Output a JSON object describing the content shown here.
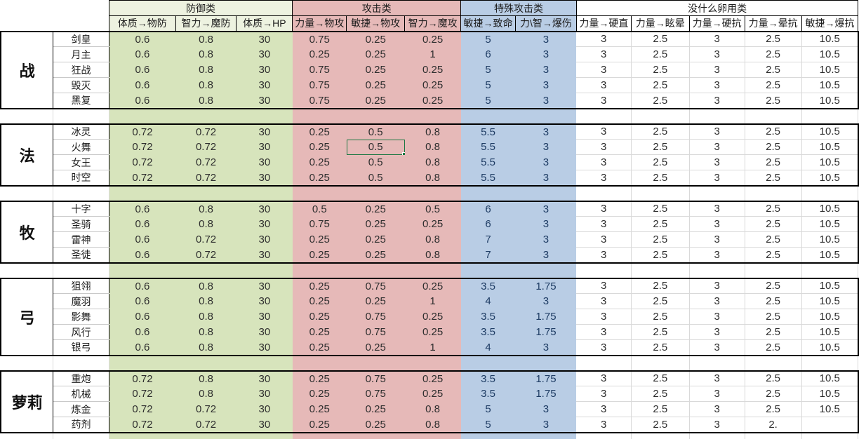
{
  "table": {
    "column_groups": [
      {
        "label": "防御类",
        "span": 3,
        "fill": "#d7e4bc"
      },
      {
        "label": "攻击类",
        "span": 3,
        "fill": "#e6b9b8"
      },
      {
        "label": "特殊攻击类",
        "span": 2,
        "fill": "#b9cde5"
      },
      {
        "label": "没什么卵用类",
        "span": 5,
        "fill": "#ffffff"
      }
    ],
    "columns": [
      "体质→物防",
      "智力→魔防",
      "体质→HP",
      "力量→物攻",
      "敏捷→物攻",
      "智力→魔攻",
      "敏捷→致命",
      "力\\智→爆伤",
      "力量→硬直",
      "力量→眩晕",
      "力量→硬抗",
      "力量→晕抗",
      "敏捷→爆抗"
    ],
    "groups": [
      {
        "label": "战",
        "rows": [
          {
            "name": "剑皇",
            "values": [
              "0.6",
              "0.8",
              "30",
              "0.75",
              "0.25",
              "0.25",
              "5",
              "3",
              "3",
              "2.5",
              "3",
              "2.5",
              "10.5"
            ]
          },
          {
            "name": "月主",
            "values": [
              "0.6",
              "0.8",
              "30",
              "0.25",
              "0.25",
              "1",
              "6",
              "3",
              "3",
              "2.5",
              "3",
              "2.5",
              "10.5"
            ]
          },
          {
            "name": "狂战",
            "values": [
              "0.6",
              "0.8",
              "30",
              "0.75",
              "0.25",
              "0.25",
              "5",
              "3",
              "3",
              "2.5",
              "3",
              "2.5",
              "10.5"
            ]
          },
          {
            "name": "毁灭",
            "values": [
              "0.6",
              "0.8",
              "30",
              "0.75",
              "0.25",
              "0.25",
              "5",
              "3",
              "3",
              "2.5",
              "3",
              "2.5",
              "10.5"
            ]
          },
          {
            "name": "黑复",
            "values": [
              "0.6",
              "0.8",
              "30",
              "0.75",
              "0.25",
              "0.25",
              "5",
              "3",
              "3",
              "2.5",
              "3",
              "2.5",
              "10.5"
            ]
          }
        ]
      },
      {
        "label": "法",
        "rows": [
          {
            "name": "冰灵",
            "values": [
              "0.72",
              "0.72",
              "30",
              "0.25",
              "0.5",
              "0.8",
              "5.5",
              "3",
              "3",
              "2.5",
              "3",
              "2.5",
              "10.5"
            ]
          },
          {
            "name": "火舞",
            "values": [
              "0.72",
              "0.72",
              "30",
              "0.25",
              "0.5",
              "0.8",
              "5.5",
              "3",
              "3",
              "2.5",
              "3",
              "2.5",
              "10.5"
            ]
          },
          {
            "name": "女王",
            "values": [
              "0.72",
              "0.72",
              "30",
              "0.25",
              "0.5",
              "0.8",
              "5.5",
              "3",
              "3",
              "2.5",
              "3",
              "2.5",
              "10.5"
            ]
          },
          {
            "name": "时空",
            "values": [
              "0.72",
              "0.72",
              "30",
              "0.25",
              "0.5",
              "0.8",
              "5.5",
              "3",
              "3",
              "2.5",
              "3",
              "2.5",
              "10.5"
            ]
          }
        ]
      },
      {
        "label": "牧",
        "rows": [
          {
            "name": "十字",
            "values": [
              "0.6",
              "0.8",
              "30",
              "0.5",
              "0.25",
              "0.5",
              "6",
              "3",
              "3",
              "2.5",
              "3",
              "2.5",
              "10.5"
            ]
          },
          {
            "name": "圣骑",
            "values": [
              "0.6",
              "0.8",
              "30",
              "0.75",
              "0.25",
              "0.25",
              "6",
              "3",
              "3",
              "2.5",
              "3",
              "2.5",
              "10.5"
            ]
          },
          {
            "name": "雷神",
            "values": [
              "0.6",
              "0.72",
              "30",
              "0.25",
              "0.25",
              "0.8",
              "7",
              "3",
              "3",
              "2.5",
              "3",
              "2.5",
              "10.5"
            ]
          },
          {
            "name": "圣徒",
            "values": [
              "0.6",
              "0.72",
              "30",
              "0.25",
              "0.25",
              "0.8",
              "7",
              "3",
              "3",
              "2.5",
              "3",
              "2.5",
              "10.5"
            ]
          }
        ]
      },
      {
        "label": "弓",
        "rows": [
          {
            "name": "狙翎",
            "values": [
              "0.6",
              "0.8",
              "30",
              "0.25",
              "0.75",
              "0.25",
              "3.5",
              "1.75",
              "3",
              "2.5",
              "3",
              "2.5",
              "10.5"
            ]
          },
          {
            "name": "魔羽",
            "values": [
              "0.6",
              "0.8",
              "30",
              "0.25",
              "0.25",
              "1",
              "4",
              "3",
              "3",
              "2.5",
              "3",
              "2.5",
              "10.5"
            ]
          },
          {
            "name": "影舞",
            "values": [
              "0.6",
              "0.8",
              "30",
              "0.25",
              "0.75",
              "0.25",
              "3.5",
              "1.75",
              "3",
              "2.5",
              "3",
              "2.5",
              "10.5"
            ]
          },
          {
            "name": "风行",
            "values": [
              "0.6",
              "0.8",
              "30",
              "0.25",
              "0.75",
              "0.25",
              "3.5",
              "1.75",
              "3",
              "2.5",
              "3",
              "2.5",
              "10.5"
            ]
          },
          {
            "name": "银弓",
            "values": [
              "0.6",
              "0.8",
              "30",
              "0.25",
              "0.25",
              "1",
              "4",
              "3",
              "3",
              "2.5",
              "3",
              "2.5",
              "10.5"
            ]
          }
        ]
      },
      {
        "label": "萝莉",
        "rows": [
          {
            "name": "重炮",
            "values": [
              "0.72",
              "0.8",
              "30",
              "0.25",
              "0.75",
              "0.25",
              "3.5",
              "1.75",
              "3",
              "2.5",
              "3",
              "2.5",
              "10.5"
            ]
          },
          {
            "name": "机械",
            "values": [
              "0.72",
              "0.8",
              "30",
              "0.25",
              "0.75",
              "0.25",
              "3.5",
              "1.75",
              "3",
              "2.5",
              "3",
              "2.5",
              "10.5"
            ]
          },
          {
            "name": "炼金",
            "values": [
              "0.72",
              "0.72",
              "30",
              "0.25",
              "0.25",
              "0.8",
              "5",
              "3",
              "3",
              "2.5",
              "3",
              "2.5",
              "10.5"
            ]
          },
          {
            "name": "药剂",
            "values": [
              "0.72",
              "0.72",
              "30",
              "0.25",
              "0.25",
              "0.8",
              "5",
              "3",
              "3",
              "2.5",
              "3",
              "2.",
              ""
            ]
          }
        ]
      }
    ]
  },
  "selection": {
    "group_index": 1,
    "row_index": 1,
    "col_index": 4,
    "group": "法",
    "class_name": "火舞",
    "column": "敏捷→物攻",
    "value": "0.5"
  },
  "colors": {
    "defense_fill": "#d7e4bc",
    "defense_header_fill": "#edf2e0",
    "attack_fill": "#e6b9b8",
    "special_attack_fill": "#b9cde5",
    "useless_fill": "#ffffff",
    "selection_border": "#1b7742",
    "gridline": "#d9d9d9",
    "block_border": "#000000"
  }
}
